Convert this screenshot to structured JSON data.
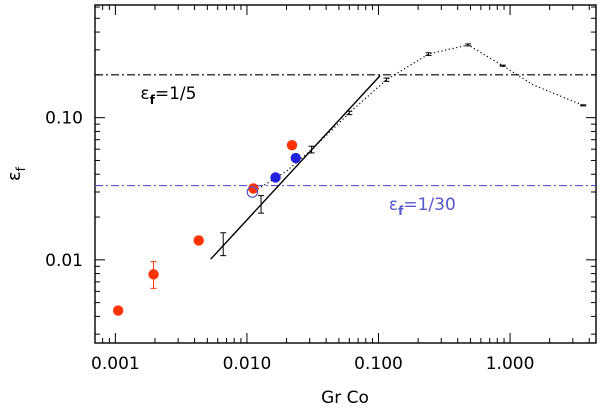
{
  "chart_data": {
    "type": "scatter",
    "xscale": "log",
    "yscale": "log",
    "xlim": [
      0.0007,
      4.5
    ],
    "ylim": [
      0.0026,
      0.62
    ],
    "xlabel": "Gr Co",
    "ylabel": "ε_f",
    "xticks": [
      {
        "value": 0.001,
        "label": "0.001"
      },
      {
        "value": 0.01,
        "label": "0.010"
      },
      {
        "value": 0.1,
        "label": "0.100"
      },
      {
        "value": 1.0,
        "label": "1.000"
      }
    ],
    "yticks": [
      {
        "value": 0.01,
        "label": "0.01"
      },
      {
        "value": 0.1,
        "label": "0.10"
      }
    ],
    "colors": {
      "red": "#ff3300",
      "blue": "#2222dd",
      "black": "#000000",
      "blue_line": "#5555cc"
    },
    "hlines": [
      {
        "name": "one-fifth",
        "y": 0.2,
        "style": "dashdot",
        "color": "#000000",
        "label_prefix": "ε",
        "label_sub": "f",
        "label_suffix": "=1/5",
        "label_x": 0.00155,
        "label_y": 0.135
      },
      {
        "name": "one-thirtieth",
        "y": 0.0333,
        "style": "dashdot",
        "color": "#5555cc",
        "label_prefix": "ε",
        "label_sub": "f",
        "label_suffix": "=1/30",
        "label_x": 0.12,
        "label_y": 0.0225
      }
    ],
    "series": [
      {
        "name": "red-points",
        "color": "#ff3300",
        "points": [
          {
            "x": 0.00105,
            "y": 0.0044
          },
          {
            "x": 0.00195,
            "y": 0.0079,
            "err_lo": 0.0063,
            "err_hi": 0.0097
          },
          {
            "x": 0.0043,
            "y": 0.0137
          },
          {
            "x": 0.0112,
            "y": 0.0318
          },
          {
            "x": 0.022,
            "y": 0.064
          }
        ]
      },
      {
        "name": "blue-points",
        "color": "#2222dd",
        "points": [
          {
            "x": 0.0165,
            "y": 0.038
          },
          {
            "x": 0.0235,
            "y": 0.052
          }
        ]
      },
      {
        "name": "open-point",
        "color": "#5555cc",
        "open": true,
        "points": [
          {
            "x": 0.011,
            "y": 0.03
          }
        ]
      },
      {
        "name": "black-errorbars",
        "color": "#000000",
        "points": [
          {
            "x": 0.0066,
            "y": 0.0128,
            "err_lo": 0.0107,
            "err_hi": 0.0155
          },
          {
            "x": 0.0128,
            "y": 0.0245,
            "err_lo": 0.0213,
            "err_hi": 0.0283
          },
          {
            "x": 0.031,
            "y": 0.0595,
            "err_lo": 0.0565,
            "err_hi": 0.063
          },
          {
            "x": 0.06,
            "y": 0.108,
            "err_lo": 0.105,
            "err_hi": 0.111
          },
          {
            "x": 0.115,
            "y": 0.185,
            "err_lo": 0.18,
            "err_hi": 0.19
          },
          {
            "x": 0.24,
            "y": 0.28,
            "err_lo": 0.274,
            "err_hi": 0.286
          },
          {
            "x": 0.48,
            "y": 0.325,
            "err_lo": 0.32,
            "err_hi": 0.33
          },
          {
            "x": 0.88,
            "y": 0.232,
            "err_lo": 0.23,
            "err_hi": 0.234
          },
          {
            "x": 3.6,
            "y": 0.122,
            "err_lo": 0.121,
            "err_hi": 0.123
          }
        ]
      }
    ],
    "lines": [
      {
        "name": "power-law-fit",
        "style": "solid",
        "color": "#000000",
        "points": [
          {
            "x": 0.0053,
            "y": 0.0101
          },
          {
            "x": 0.103,
            "y": 0.198
          }
        ]
      },
      {
        "name": "dotted-curve",
        "style": "dotted",
        "color": "#000000",
        "points": [
          {
            "x": 0.0108,
            "y": 0.0295
          },
          {
            "x": 0.02,
            "y": 0.042
          },
          {
            "x": 0.031,
            "y": 0.0595
          },
          {
            "x": 0.06,
            "y": 0.108
          },
          {
            "x": 0.115,
            "y": 0.185
          },
          {
            "x": 0.24,
            "y": 0.28
          },
          {
            "x": 0.48,
            "y": 0.325
          },
          {
            "x": 0.88,
            "y": 0.232
          },
          {
            "x": 1.5,
            "y": 0.17
          },
          {
            "x": 3.6,
            "y": 0.122
          }
        ]
      }
    ]
  }
}
